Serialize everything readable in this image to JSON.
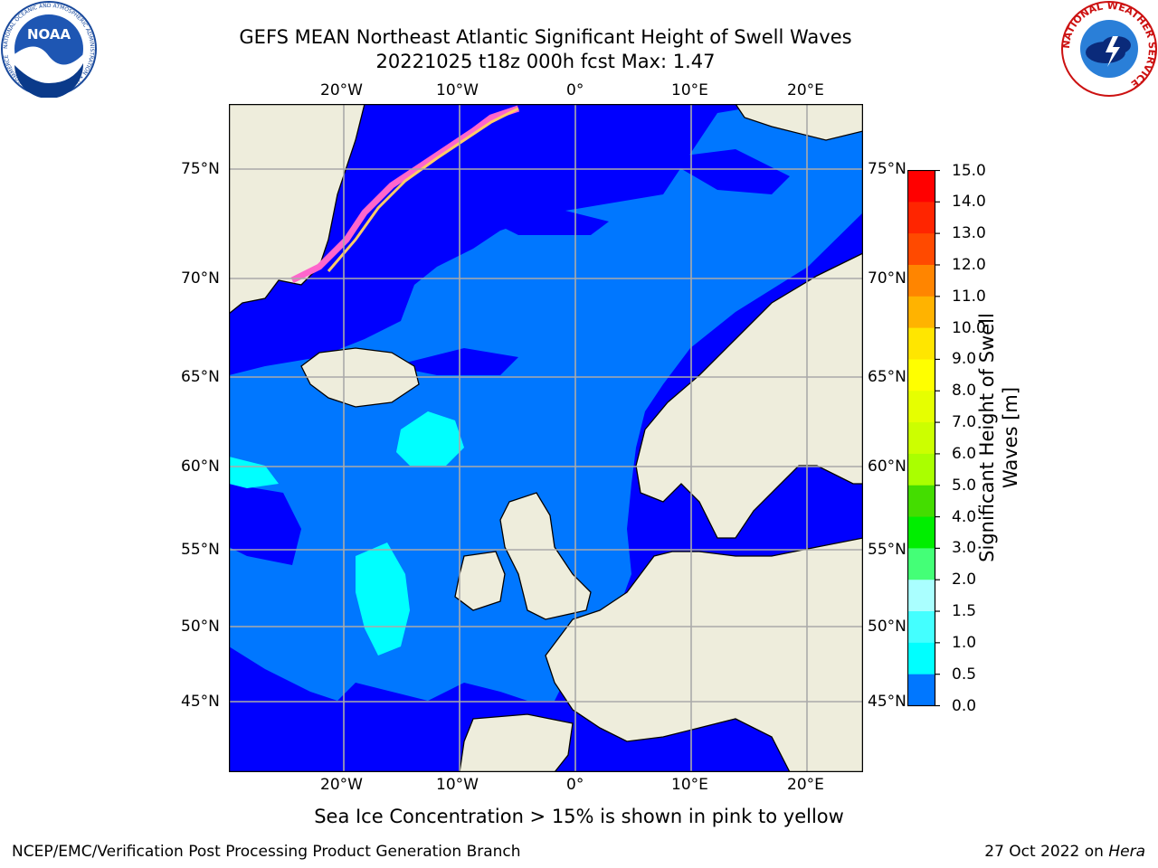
{
  "title": {
    "line1": "GEFS MEAN Northeast Atlantic Significant Height of Swell Waves",
    "line2": "20221025 t18z 000h fcst   Max: 1.47"
  },
  "map": {
    "lon_labels": [
      "20°W",
      "10°W",
      "0°",
      "10°E",
      "20°E"
    ],
    "lat_labels": [
      "75°N",
      "70°N",
      "65°N",
      "60°N",
      "55°N",
      "50°N",
      "45°N"
    ],
    "colors": {
      "land": "#eeeddc",
      "sea_low": "#0000ff",
      "sea_mid": "#0077ff",
      "sea_high": "#00ffff",
      "grid": "#aaaaaa",
      "ice": "#ff66cc"
    }
  },
  "colorbar": {
    "title_line1": "Significant Height of Swell",
    "title_line2": "Waves [m]",
    "labels": [
      "15.0",
      "14.0",
      "13.0",
      "12.0",
      "11.0",
      "10.0",
      "9.0",
      "8.0",
      "7.0",
      "6.0",
      "5.0",
      "4.0",
      "3.0",
      "2.0",
      "1.5",
      "1.0",
      "0.5",
      "0.0"
    ],
    "colors_top_to_bottom": [
      "#ff0000",
      "#ff2500",
      "#ff4a00",
      "#ff8500",
      "#ffb300",
      "#ffe600",
      "#ffff00",
      "#e6ff00",
      "#ccff00",
      "#aaff00",
      "#44dd00",
      "#00ee00",
      "#44ff77",
      "#aaffff",
      "#44ffff",
      "#00ffff",
      "#0077ff",
      "#0000ff"
    ]
  },
  "caption": "Sea Ice Concentration > 15% is shown in pink to yellow",
  "footer": {
    "left": "NCEP/EMC/Verification Post Processing Product Generation Branch",
    "right_prefix": "27 Oct 2022 on ",
    "right_host": "Hera"
  },
  "logos": {
    "left": "NOAA",
    "left_ring": "NATIONAL OCEANIC AND ATMOSPHERIC ADMINISTRATION • U.S. DEPARTMENT OF COMMERCE",
    "right": "NATIONAL WEATHER SERVICE"
  }
}
